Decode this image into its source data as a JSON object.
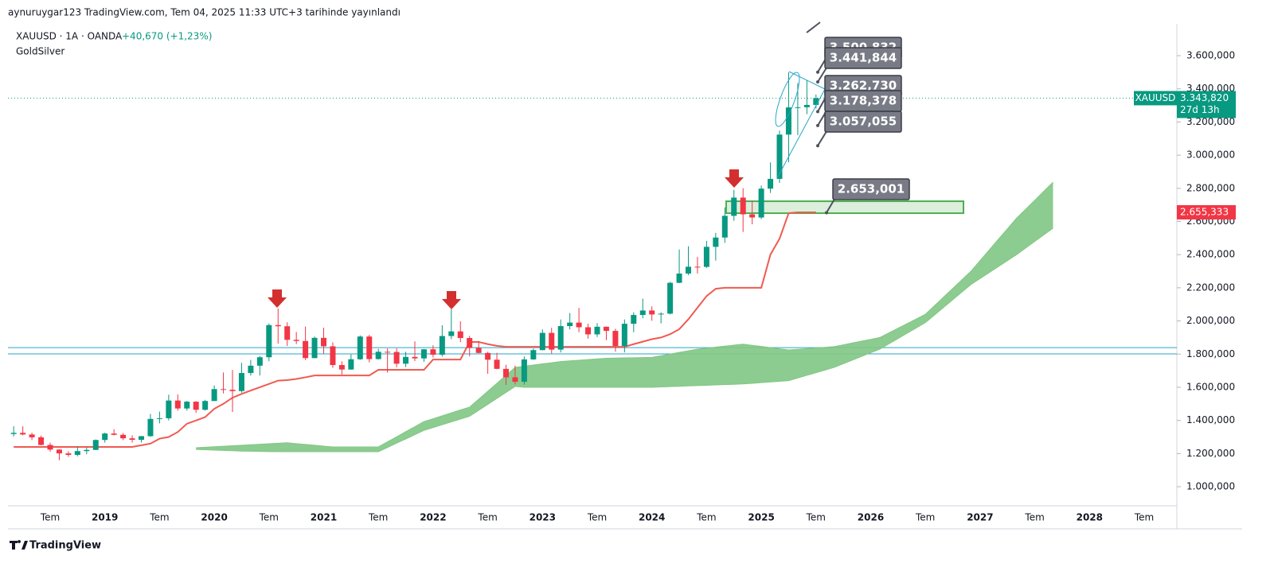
{
  "header": {
    "published": "aynuruygar123 TradingView.com, Tem 04, 2025 11:33 UTC+3 tarihinde yayınlandı",
    "symbol": "XAUUSD · 1A · OANDA",
    "change": "+40,670 (+1,23%)",
    "indicator": "GoldSilver"
  },
  "footer": {
    "logo": "TradingView"
  },
  "chart_data": {
    "type": "candlestick",
    "categories": [
      null,
      null,
      null,
      null,
      "Tem",
      null,
      null,
      null,
      null,
      null,
      "2019",
      null,
      null,
      null,
      null,
      null,
      "Tem",
      null,
      null,
      null,
      null,
      null,
      "2020",
      null,
      null,
      null,
      null,
      null,
      "Tem",
      null,
      null,
      null,
      null,
      null,
      "2021",
      null,
      null,
      null,
      null,
      null,
      "Tem",
      null,
      null,
      null,
      null,
      null,
      "2022",
      null,
      null,
      null,
      null,
      null,
      "Tem",
      null,
      null,
      null,
      null,
      null,
      "2023",
      null,
      null,
      null,
      null,
      null,
      "Tem",
      null,
      null,
      null,
      null,
      null,
      "2024",
      null,
      null,
      null,
      null,
      null,
      "Tem",
      null,
      null,
      null,
      null,
      null,
      "2025",
      null,
      null,
      null,
      null,
      null,
      "Tem",
      null,
      null,
      null,
      null,
      null,
      "2026",
      null,
      null,
      null,
      null,
      null,
      "Tem",
      null,
      null,
      null,
      null,
      null,
      "2027",
      null,
      null,
      null,
      null,
      null,
      "Tem",
      null,
      null,
      null,
      null,
      null,
      "2028",
      null,
      null,
      null,
      null,
      null,
      "Tem"
    ],
    "open": [
      1318,
      1325,
      1315,
      1298,
      1252,
      1224,
      1201,
      1192,
      1215,
      1222,
      1282,
      1321,
      1313,
      1292,
      1283,
      1305,
      1409,
      1413,
      1520,
      1472,
      1513,
      1464,
      1517,
      1589,
      1585,
      1577,
      1686,
      1730,
      1781,
      1975,
      1968,
      1886,
      1879,
      1776,
      1898,
      1847,
      1734,
      1707,
      1769,
      1906,
      1770,
      1814,
      1813,
      1742,
      1783,
      1774,
      1829,
      1796,
      1909,
      1937,
      1897,
      1837,
      1807,
      1766,
      1711,
      1660,
      1633,
      1768,
      1824,
      1928,
      1827,
      1969,
      1990,
      1962,
      1919,
      1965,
      1940,
      1849,
      1983,
      2036,
      2063,
      2039,
      2044,
      2230,
      2286,
      2327,
      2326,
      2447,
      2503,
      2634,
      2744,
      2643,
      2624,
      2798,
      2857,
      3124,
      3288,
      3289,
      3303,
      null,
      null,
      null,
      null,
      null,
      null,
      null,
      null,
      null,
      null,
      null,
      null,
      null,
      null,
      null,
      null,
      null,
      null,
      null,
      null,
      null,
      null,
      null,
      null,
      null,
      null,
      null,
      null,
      null,
      null,
      null,
      null,
      null,
      null,
      null,
      null
    ],
    "high": [
      1365,
      1365,
      1326,
      1309,
      1266,
      1225,
      1214,
      1243,
      1237,
      1285,
      1326,
      1347,
      1324,
      1310,
      1306,
      1439,
      1453,
      1555,
      1557,
      1518,
      1516,
      1524,
      1611,
      1689,
      1704,
      1747,
      1765,
      1789,
      1984,
      2075,
      1992,
      1933,
      1966,
      1906,
      1959,
      1871,
      1756,
      1798,
      1913,
      1916,
      1832,
      1834,
      1834,
      1814,
      1877,
      1831,
      1853,
      1974,
      2070,
      1998,
      1910,
      1879,
      1814,
      1808,
      1735,
      1730,
      1786,
      1833,
      1949,
      1959,
      2009,
      2048,
      2079,
      1983,
      1987,
      1966,
      1953,
      2009,
      2052,
      2135,
      2088,
      2052,
      2236,
      2431,
      2450,
      2387,
      2483,
      2531,
      2685,
      2790,
      2801,
      2726,
      2817,
      2956,
      3148,
      3500,
      3435,
      3452,
      3366,
      null,
      null,
      null,
      null,
      null,
      null,
      null,
      null,
      null,
      null,
      null,
      null,
      null,
      null,
      null,
      null,
      null,
      null,
      null,
      null,
      null,
      null,
      null,
      null,
      null,
      null,
      null,
      null,
      null,
      null,
      null,
      null,
      null,
      null,
      null,
      null
    ],
    "low": [
      1303,
      1310,
      1281,
      1250,
      1211,
      1160,
      1180,
      1183,
      1196,
      1221,
      1266,
      1310,
      1281,
      1266,
      1267,
      1301,
      1382,
      1400,
      1459,
      1459,
      1445,
      1459,
      1517,
      1563,
      1451,
      1567,
      1670,
      1671,
      1757,
      1863,
      1849,
      1860,
      1764,
      1775,
      1803,
      1717,
      1677,
      1705,
      1765,
      1750,
      1767,
      1688,
      1721,
      1722,
      1758,
      1753,
      1780,
      1785,
      1890,
      1872,
      1787,
      1805,
      1681,
      1709,
      1615,
      1617,
      1616,
      1765,
      1823,
      1804,
      1810,
      1949,
      1932,
      1893,
      1903,
      1884,
      1815,
      1810,
      1932,
      2016,
      2001,
      1985,
      2039,
      2228,
      2277,
      2286,
      2320,
      2364,
      2471,
      2604,
      2537,
      2583,
      2614,
      2772,
      2833,
      2957,
      3121,
      3247,
      3282,
      null,
      null,
      null,
      null,
      null,
      null,
      null,
      null,
      null,
      null,
      null,
      null,
      null,
      null,
      null,
      null,
      null,
      null,
      null,
      null,
      null,
      null,
      null,
      null,
      null,
      null,
      null,
      null,
      null,
      null,
      null,
      null,
      null,
      null,
      null,
      null
    ],
    "close": [
      1325,
      1315,
      1298,
      1252,
      1224,
      1201,
      1192,
      1215,
      1222,
      1282,
      1321,
      1313,
      1292,
      1283,
      1305,
      1409,
      1413,
      1520,
      1472,
      1513,
      1464,
      1517,
      1589,
      1585,
      1577,
      1686,
      1730,
      1781,
      1975,
      1968,
      1886,
      1879,
      1776,
      1898,
      1847,
      1734,
      1707,
      1769,
      1906,
      1770,
      1814,
      1813,
      1742,
      1783,
      1774,
      1829,
      1796,
      1909,
      1937,
      1897,
      1837,
      1807,
      1766,
      1711,
      1660,
      1633,
      1768,
      1824,
      1928,
      1827,
      1969,
      1990,
      1962,
      1919,
      1965,
      1940,
      1849,
      1983,
      2036,
      2063,
      2039,
      2044,
      2230,
      2286,
      2327,
      2326,
      2447,
      2503,
      2634,
      2744,
      2643,
      2624,
      2798,
      2857,
      3124,
      3288,
      3289,
      3303,
      3344,
      null,
      null,
      null,
      null,
      null,
      null,
      null,
      null,
      null,
      null,
      null,
      null,
      null,
      null,
      null,
      null,
      null,
      null,
      null,
      null,
      null,
      null,
      null,
      null,
      null,
      null,
      null,
      null,
      null,
      null,
      null,
      null,
      null,
      null,
      null,
      null
    ],
    "baseline": [
      1240,
      1240,
      1240,
      1240,
      1240,
      1240,
      1240,
      1240,
      1240,
      1240,
      1240,
      1240,
      1240,
      1240,
      1250,
      1260,
      1290,
      1300,
      1330,
      1380,
      1400,
      1420,
      1470,
      1500,
      1537,
      1560,
      1580,
      1600,
      1620,
      1640,
      1643,
      1650,
      1660,
      1671,
      1671,
      1671,
      1671,
      1671,
      1671,
      1671,
      1705,
      1705,
      1705,
      1705,
      1705,
      1705,
      1767,
      1767,
      1767,
      1767,
      1873,
      1873,
      1860,
      1850,
      1844,
      1844,
      1844,
      1844,
      1844,
      1844,
      1844,
      1844,
      1844,
      1844,
      1844,
      1844,
      1844,
      1844,
      1860,
      1875,
      1890,
      1900,
      1920,
      1950,
      2010,
      2080,
      2150,
      2194,
      2200,
      2200,
      2200,
      2200,
      2200,
      2400,
      2496,
      2650,
      2655,
      2655,
      2655,
      null,
      null,
      null,
      null,
      null,
      null,
      null,
      null,
      null,
      null,
      null,
      null,
      null,
      null,
      null,
      null,
      null,
      null,
      null,
      null,
      null,
      null,
      null,
      null,
      null,
      null,
      null,
      null,
      null,
      null,
      null,
      null,
      null,
      null,
      null,
      null
    ],
    "cloud_upper": [
      null,
      null,
      null,
      null,
      null,
      null,
      null,
      null,
      null,
      null,
      null,
      null,
      null,
      null,
      null,
      null,
      null,
      null,
      null,
      null,
      1235,
      1238,
      1241,
      1244,
      1247,
      1250,
      1253,
      1256,
      1259,
      1262,
      1265,
      1260,
      1255,
      1250,
      1245,
      1240,
      1240,
      1240,
      1240,
      1240,
      1240,
      1271,
      1301,
      1332,
      1362,
      1393,
      1410,
      1428,
      1445,
      1463,
      1480,
      1528,
      1576,
      1624,
      1672,
      1720,
      1727,
      1734,
      1741,
      1748,
      1755,
      1759,
      1763,
      1767,
      1771,
      1775,
      1776,
      1777,
      1778,
      1779,
      1780,
      1790,
      1800,
      1810,
      1820,
      1830,
      1836,
      1842,
      1848,
      1854,
      1860,
      1853,
      1846,
      1839,
      1832,
      1825,
      1829,
      1833,
      1837,
      1841,
      1845,
      1856,
      1867,
      1878,
      1889,
      1900,
      1928,
      1956,
      1984,
      2012,
      2040,
      2092,
      2144,
      2196,
      2248,
      2300,
      2364,
      2428,
      2492,
      2556,
      2620,
      2674,
      2728,
      2783,
      2837,
      null,
      null,
      null,
      null,
      null,
      null,
      null,
      null,
      null,
      null
    ],
    "cloud_lower": [
      null,
      null,
      null,
      null,
      null,
      null,
      null,
      null,
      null,
      null,
      null,
      null,
      null,
      null,
      null,
      null,
      null,
      null,
      null,
      null,
      1225,
      1223,
      1221,
      1219,
      1217,
      1215,
      1214,
      1213,
      1212,
      1211,
      1211,
      1211,
      1211,
      1211,
      1211,
      1211,
      1211,
      1211,
      1211,
      1211,
      1211,
      1237,
      1263,
      1288,
      1314,
      1340,
      1357,
      1374,
      1391,
      1408,
      1425,
      1461,
      1497,
      1533,
      1569,
      1605,
      1600,
      1600,
      1600,
      1600,
      1600,
      1600,
      1600,
      1600,
      1600,
      1600,
      1600,
      1600,
      1600,
      1600,
      1600,
      1602,
      1604,
      1606,
      1608,
      1610,
      1612,
      1614,
      1616,
      1618,
      1620,
      1624,
      1628,
      1632,
      1636,
      1640,
      1656,
      1672,
      1688,
      1704,
      1720,
      1742,
      1764,
      1786,
      1808,
      1830,
      1862,
      1894,
      1926,
      1958,
      1990,
      2036,
      2082,
      2128,
      2174,
      2220,
      2256,
      2292,
      2328,
      2364,
      2400,
      2440,
      2480,
      2520,
      2560,
      null,
      null,
      null,
      null,
      null,
      null,
      null,
      null,
      null,
      null
    ],
    "ylim": [
      885,
      3792
    ],
    "yticks": [
      {
        "value": 1000,
        "label": "1.000,000"
      },
      {
        "value": 1200,
        "label": "1.200,000"
      },
      {
        "value": 1400,
        "label": "1.400,000"
      },
      {
        "value": 1600,
        "label": "1.600,000"
      },
      {
        "value": 1800,
        "label": "1.800,000"
      },
      {
        "value": 2000,
        "label": "2.000,000"
      },
      {
        "value": 2200,
        "label": "2.200,000"
      },
      {
        "value": 2400,
        "label": "2.400,000"
      },
      {
        "value": 2600,
        "label": "2.600,000"
      },
      {
        "value": 2800,
        "label": "2.800,000"
      },
      {
        "value": 3000,
        "label": "3.000,000"
      },
      {
        "value": 3200,
        "label": "3.200,000"
      },
      {
        "value": 3400,
        "label": "3.400,000"
      },
      {
        "value": 3600,
        "label": "3.600,000"
      }
    ],
    "current_price": {
      "value": 3343.82,
      "label": "3.343,820",
      "name": "XAUUSD",
      "countdown": "27d 13h"
    },
    "baseline_price": {
      "value": 2655.333,
      "label": "2.655,333"
    },
    "price_tags": [
      {
        "value": 3500.832,
        "label": "3.500,832"
      },
      {
        "value": 3441.844,
        "label": "3.441,844"
      },
      {
        "value": 3262.73,
        "label": "3.262,730"
      },
      {
        "value": 3178.378,
        "label": "3.178,378"
      },
      {
        "value": 3057.055,
        "label": "3.057,055"
      },
      {
        "value": 2653.001,
        "label": "2.653,001"
      }
    ],
    "horizontal_levels": [
      1839,
      1801
    ],
    "zone_range": [
      2650,
      2722
    ],
    "colors": {
      "up": "#089981",
      "down": "#f23645",
      "baseline": "#f05a50",
      "cloud": "#81c784",
      "level": "#26a6c8",
      "zone": "#4caf50",
      "tag": "#787b86"
    }
  }
}
